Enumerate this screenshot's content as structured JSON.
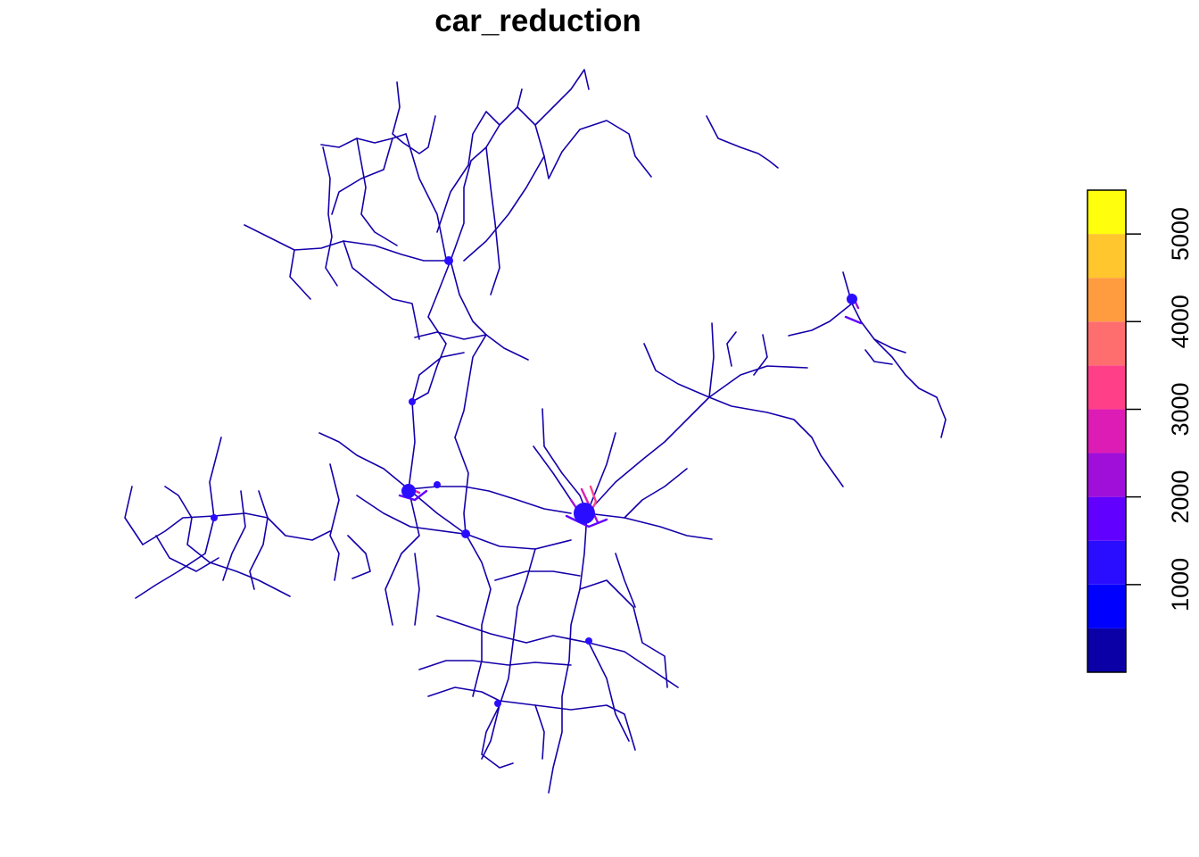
{
  "title": "car_reduction",
  "legend": {
    "ticks": [
      "1000",
      "2000",
      "3000",
      "4000",
      "5000"
    ],
    "tick_values": [
      1000,
      2000,
      3000,
      4000,
      5000
    ],
    "range": [
      0,
      5500
    ],
    "bins": [
      {
        "from": 0,
        "to": 500,
        "color": "#0A00A6"
      },
      {
        "from": 500,
        "to": 1000,
        "color": "#0000FF"
      },
      {
        "from": 1000,
        "to": 1500,
        "color": "#2A0DFF"
      },
      {
        "from": 1500,
        "to": 2000,
        "color": "#6200FF"
      },
      {
        "from": 2000,
        "to": 2500,
        "color": "#A00FDA"
      },
      {
        "from": 2500,
        "to": 3000,
        "color": "#DC1CB5"
      },
      {
        "from": 3000,
        "to": 3500,
        "color": "#FF4088"
      },
      {
        "from": 3500,
        "to": 4000,
        "color": "#FF6E6E"
      },
      {
        "from": 4000,
        "to": 4500,
        "color": "#FF9C40"
      },
      {
        "from": 4500,
        "to": 5000,
        "color": "#FFC62D"
      },
      {
        "from": 5000,
        "to": 5500,
        "color": "#FFFF0D"
      }
    ]
  }
}
